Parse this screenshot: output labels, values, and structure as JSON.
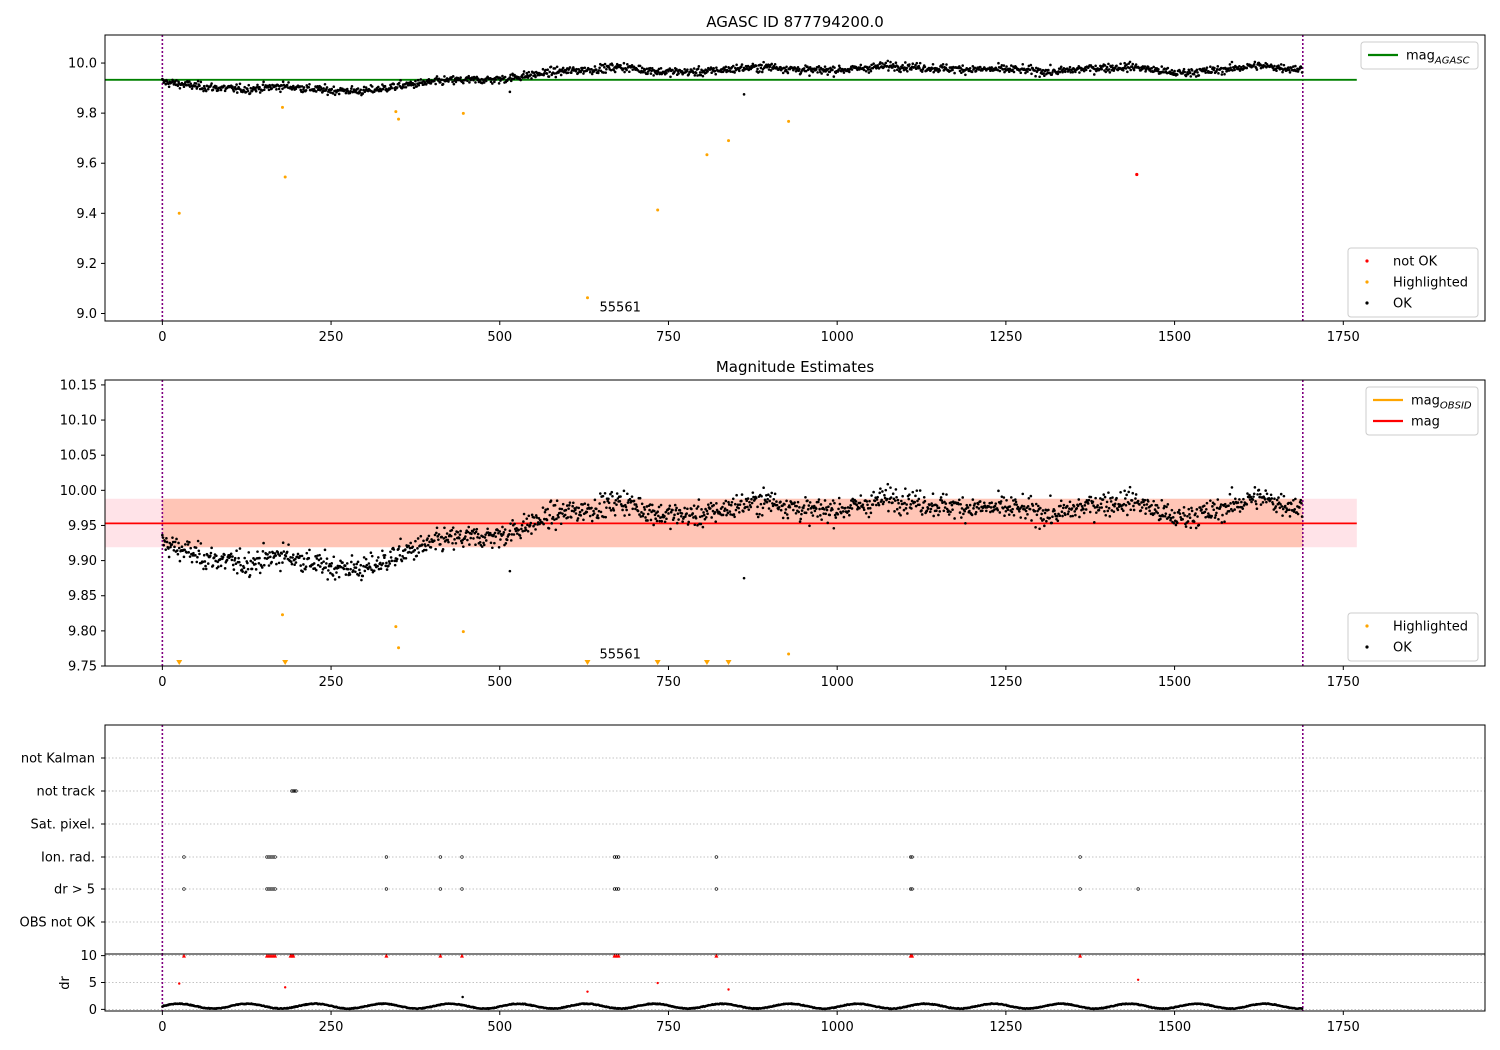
{
  "chart_data": [
    {
      "type": "scatter",
      "title": "AGASC ID 877794200.0",
      "xlabel": "",
      "ylabel": "",
      "xlim": [
        -85,
        1960
      ],
      "ylim": [
        8.97,
        10.112
      ],
      "x_ticks": [
        0,
        250,
        500,
        750,
        1000,
        1250,
        1500,
        1750
      ],
      "y_ticks": [
        9.0,
        9.2,
        9.4,
        9.6,
        9.8,
        10.0
      ],
      "y_tick_labels": [
        "9.0",
        "9.2",
        "9.4",
        "9.6",
        "9.8",
        "10.0"
      ],
      "vertical_lines": [
        0,
        1690
      ],
      "vertical_line_color": "#800080",
      "annotation": {
        "text": "55561",
        "x": 840,
        "y": 9.0
      },
      "reference_lines": [
        {
          "name": "mag_AGASC",
          "y": 9.933,
          "x_range": [
            -85,
            1770
          ],
          "color": "#008000"
        }
      ],
      "ok_series": {
        "name": "OK",
        "color": "#000000",
        "n_points": 1690,
        "trend": {
          "x": [
            0,
            60,
            120,
            180,
            240,
            300,
            360,
            420,
            500,
            580,
            640,
            680,
            740,
            800,
            860,
            900,
            960,
            1020,
            1080,
            1140,
            1200,
            1260,
            1320,
            1380,
            1440,
            1500,
            1560,
            1620,
            1690
          ],
          "y": [
            9.925,
            9.905,
            9.895,
            9.908,
            9.892,
            9.888,
            9.912,
            9.93,
            9.935,
            9.965,
            9.975,
            9.985,
            9.965,
            9.965,
            9.98,
            9.985,
            9.97,
            9.975,
            9.99,
            9.98,
            9.975,
            9.975,
            9.965,
            9.98,
            9.985,
            9.96,
            9.97,
            9.99,
            9.975
          ]
        },
        "scatter": 0.012,
        "outliers": [
          {
            "x": 515,
            "y": 9.885
          },
          {
            "x": 862,
            "y": 9.875
          }
        ]
      },
      "highlighted_series": {
        "name": "Highlighted",
        "color": "#FFA500",
        "points": [
          {
            "x": 25,
            "y": 9.4
          },
          {
            "x": 178,
            "y": 9.823
          },
          {
            "x": 182,
            "y": 9.545
          },
          {
            "x": 346,
            "y": 9.806
          },
          {
            "x": 350,
            "y": 9.776
          },
          {
            "x": 446,
            "y": 9.799
          },
          {
            "x": 630,
            "y": 9.063
          },
          {
            "x": 734,
            "y": 9.413
          },
          {
            "x": 807,
            "y": 9.634
          },
          {
            "x": 839,
            "y": 9.69
          },
          {
            "x": 928,
            "y": 9.767
          }
        ]
      },
      "not_ok_series": {
        "name": "not OK",
        "color": "#FF0000",
        "points": [
          {
            "x": 1444,
            "y": 9.555
          }
        ]
      },
      "legends": [
        {
          "position": "upper-right",
          "entries": [
            {
              "label": "mag",
              "sub": "AGASC",
              "kind": "line",
              "color": "#008000"
            }
          ]
        },
        {
          "position": "lower-right",
          "entries": [
            {
              "label": "not OK",
              "kind": "dot",
              "color": "#FF0000"
            },
            {
              "label": "Highlighted",
              "kind": "dot",
              "color": "#FFA500"
            },
            {
              "label": "OK",
              "kind": "dot",
              "color": "#000000"
            }
          ]
        }
      ]
    },
    {
      "type": "scatter",
      "title": "Magnitude Estimates",
      "xlabel": "",
      "ylabel": "",
      "xlim": [
        -85,
        1960
      ],
      "ylim": [
        9.75,
        10.157
      ],
      "x_ticks": [
        0,
        250,
        500,
        750,
        1000,
        1250,
        1500,
        1750
      ],
      "y_ticks": [
        9.75,
        9.8,
        9.85,
        9.9,
        9.95,
        10.0,
        10.05,
        10.1,
        10.15
      ],
      "y_tick_labels": [
        "9.75",
        "9.80",
        "9.85",
        "9.90",
        "9.95",
        "10.00",
        "10.05",
        "10.10",
        "10.15"
      ],
      "vertical_lines": [
        0,
        1690
      ],
      "vertical_line_color": "#800080",
      "annotation": {
        "text": "55561",
        "x": 840,
        "y": 9.762
      },
      "bands": [
        {
          "y_range": [
            9.919,
            9.988
          ],
          "x_range": [
            -85,
            1770
          ],
          "color": "#FFC0CB",
          "opacity": 0.45
        },
        {
          "y_range": [
            9.919,
            9.988
          ],
          "x_range": [
            0,
            1690
          ],
          "color": "#FFA07A",
          "opacity": 0.45
        }
      ],
      "reference_lines": [
        {
          "name": "mag",
          "y": 9.953,
          "x_range": [
            -85,
            1770
          ],
          "color": "#FF0000"
        }
      ],
      "ok_series": {
        "name": "OK",
        "color": "#000000",
        "n_points": 1690,
        "same_as_panel": 0,
        "scatter": 0.012,
        "outliers": [
          {
            "x": 515,
            "y": 9.885
          },
          {
            "x": 862,
            "y": 9.875
          }
        ]
      },
      "highlighted_series": {
        "name": "Highlighted",
        "color": "#FFA500",
        "points": [
          {
            "x": 178,
            "y": 9.823
          },
          {
            "x": 346,
            "y": 9.806
          },
          {
            "x": 350,
            "y": 9.776
          },
          {
            "x": 446,
            "y": 9.799
          },
          {
            "x": 928,
            "y": 9.767
          }
        ],
        "below_range_markers": [
          25,
          182,
          630,
          734,
          807,
          839
        ]
      },
      "legends": [
        {
          "position": "upper-right",
          "entries": [
            {
              "label": "mag",
              "sub": "OBSID",
              "kind": "line",
              "color": "#FFA500"
            },
            {
              "label": "mag",
              "kind": "line",
              "color": "#FF0000"
            }
          ]
        },
        {
          "position": "lower-right",
          "entries": [
            {
              "label": "Highlighted",
              "kind": "dot",
              "color": "#FFA500"
            },
            {
              "label": "OK",
              "kind": "dot",
              "color": "#000000"
            }
          ]
        }
      ]
    },
    {
      "type": "scatter",
      "title": "",
      "xlabel": "",
      "ylabel": "",
      "xlim": [
        -85,
        1960
      ],
      "x_ticks": [
        0,
        250,
        500,
        750,
        1000,
        1250,
        1500,
        1750
      ],
      "vertical_lines": [
        0,
        1690
      ],
      "vertical_line_color": "#800080",
      "categories": [
        "not Kalman",
        "not track",
        "Sat. pixel.",
        "Ion. rad.",
        "dr > 5",
        "OBS not OK"
      ],
      "flags": {
        "not Kalman": [],
        "not track": [
          192,
          194,
          196,
          198
        ],
        "Sat. pixel.": [],
        "Ion. rad.": [
          32,
          155,
          158,
          161,
          164,
          167,
          332,
          412,
          444,
          670,
          673,
          676,
          821,
          1109,
          1111,
          1360
        ],
        "dr > 5": [
          32,
          155,
          158,
          161,
          164,
          167,
          332,
          412,
          444,
          670,
          673,
          676,
          821,
          1109,
          1111,
          1360,
          1446
        ],
        "OBS not OK": []
      }
    },
    {
      "type": "scatter",
      "title": "",
      "xlabel": "",
      "ylabel": "dr",
      "xlim": [
        -85,
        1960
      ],
      "ylim": [
        -0.3,
        10.3
      ],
      "y_ticks": [
        0,
        5,
        10
      ],
      "y_tick_labels": [
        "0",
        "5",
        "10"
      ],
      "x_ticks": [
        0,
        250,
        500,
        750,
        1000,
        1250,
        1500,
        1750
      ],
      "x_tick_labels": [
        "0",
        "250",
        "500",
        "750",
        "1000",
        "1250",
        "1500",
        "1750"
      ],
      "vertical_lines": [
        0,
        1690
      ],
      "vertical_line_color": "#800080",
      "ok_series": {
        "name": "OK",
        "color": "#000000",
        "n_points": 1690,
        "baseline": 0.6,
        "amplitude": 0.45,
        "outliers": [
          {
            "x": 445,
            "y": 2.3
          }
        ]
      },
      "clipped_markers": {
        "color": "#FF0000",
        "y": 10,
        "x": [
          32,
          155,
          158,
          161,
          164,
          167,
          190,
          192,
          194,
          332,
          412,
          444,
          670,
          673,
          676,
          821,
          1109,
          1111,
          1360
        ]
      },
      "red_points": [
        {
          "x": 25,
          "y": 4.8
        },
        {
          "x": 182,
          "y": 4.1
        },
        {
          "x": 630,
          "y": 3.3
        },
        {
          "x": 734,
          "y": 4.9
        },
        {
          "x": 839,
          "y": 3.7
        },
        {
          "x": 1446,
          "y": 5.5
        }
      ]
    }
  ]
}
